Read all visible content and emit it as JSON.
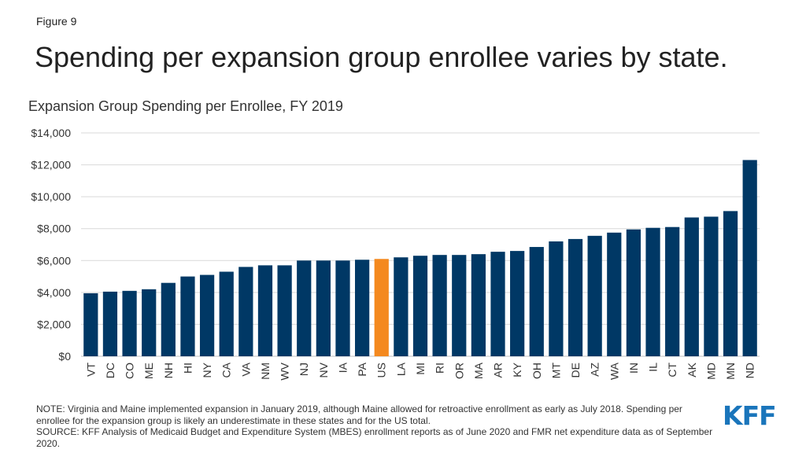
{
  "figure_label": "Figure 9",
  "title": "Spending per expansion group enrollee varies by state.",
  "chart_data": {
    "type": "bar",
    "title": "Expansion Group Spending per Enrollee, FY 2019",
    "xlabel": "",
    "ylabel": "",
    "ylim": [
      0,
      14000
    ],
    "yticks": [
      0,
      2000,
      4000,
      6000,
      8000,
      10000,
      12000,
      14000
    ],
    "ytick_labels": [
      "$0",
      "$2,000",
      "$4,000",
      "$6,000",
      "$8,000",
      "$10,000",
      "$12,000",
      "$14,000"
    ],
    "grid": true,
    "categories": [
      "VT",
      "DC",
      "CO",
      "ME",
      "NH",
      "HI",
      "NY",
      "CA",
      "VA",
      "NM",
      "WV",
      "NJ",
      "NV",
      "IA",
      "PA",
      "US",
      "LA",
      "MI",
      "RI",
      "OR",
      "MA",
      "AR",
      "KY",
      "OH",
      "MT",
      "DE",
      "AZ",
      "WA",
      "IN",
      "IL",
      "CT",
      "AK",
      "MD",
      "MN",
      "ND"
    ],
    "values": [
      3950,
      4050,
      4100,
      4200,
      4600,
      5000,
      5100,
      5300,
      5600,
      5700,
      5700,
      6000,
      6000,
      6000,
      6050,
      6100,
      6200,
      6300,
      6350,
      6350,
      6400,
      6550,
      6600,
      6850,
      7200,
      7350,
      7550,
      7750,
      7950,
      8050,
      8100,
      8700,
      8750,
      9100,
      12300
    ],
    "colors": {
      "default": "#003865",
      "highlight": "#f4891f"
    },
    "highlight_category": "US"
  },
  "notes": {
    "note": "NOTE: Virginia and Maine implemented expansion in January 2019, although Maine allowed for retroactive enrollment as early as July 2018. Spending per enrollee for the expansion group is likely an underestimate in these states and for the US total.",
    "source": "SOURCE: KFF Analysis of Medicaid Budget and Expenditure System (MBES) enrollment reports as of June 2020 and FMR net expenditure data as of September 2020."
  },
  "logo": {
    "text": "KFF",
    "color": "#1a75bb"
  }
}
